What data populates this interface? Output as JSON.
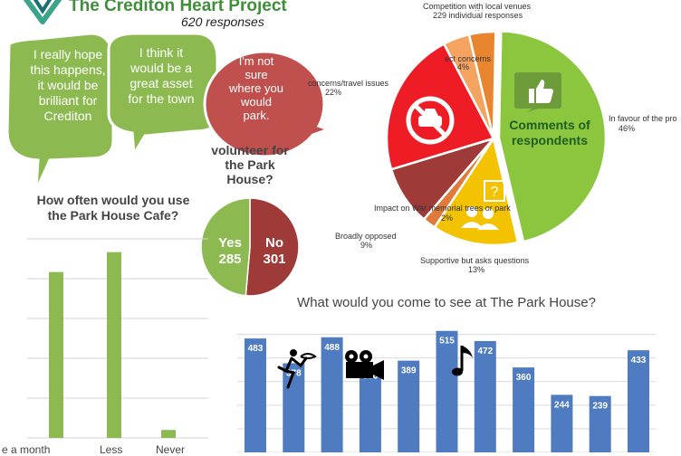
{
  "header": {
    "title": "The Crediton Heart Project",
    "subtitle": "620 responses"
  },
  "bubbles": [
    {
      "text": "I really hope this happens, it would be brilliant for Crediton",
      "color": "#8cba51"
    },
    {
      "text": "I think it would be a great asset for the town",
      "color": "#8cba51"
    },
    {
      "text": "I'm not sure where you would park.",
      "color": "#c0504d"
    }
  ],
  "volunteer": {
    "title": "volunteer for the Park House?",
    "yes_label": "Yes",
    "yes_value": "285",
    "no_label": "No",
    "no_value": "301",
    "yes_color": "#8cba51",
    "no_color": "#9e3b38"
  },
  "cafe": {
    "title": "How often would you use the Park House Cafe?",
    "bar_color": "#8cba51",
    "labels": [
      "e a month",
      "Less",
      "Never"
    ]
  },
  "comments": {
    "center_label": "Comments of respondents",
    "labels": {
      "competition": "Competition with local venues",
      "competition_pct": "4%",
      "responses": "229 individual responses",
      "noise": "ect concerns",
      "noise_pct": "4%",
      "parking": "concerns/travel issues",
      "parking_pct": "22%",
      "favour": "In favour of the pro",
      "favour_pct": "46%",
      "impact": "Impact on War memorial trees or park",
      "impact_pct": "2%",
      "opposed": "Broadly opposed",
      "opposed_pct": "9%",
      "supportive": "Supportive but asks questions",
      "supportive_pct": "13%"
    }
  },
  "chart_data": [
    {
      "type": "pie",
      "title": "volunteer for the Park House?",
      "slices": [
        {
          "label": "Yes",
          "value": 285
        },
        {
          "label": "No",
          "value": 301
        }
      ]
    },
    {
      "type": "pie",
      "title": "",
      "slices": [
        {
          "label": "In favour of the pro",
          "value": 46,
          "color": "#8cc63f"
        },
        {
          "label": "Supportive but asks questions",
          "value": 13,
          "color": "#f3c200"
        },
        {
          "label": "Impact on War memorial trees or park",
          "value": 2,
          "color": "#e07a3a"
        },
        {
          "label": "Broadly opposed",
          "value": 9,
          "color": "#9e3b38"
        },
        {
          "label": "concerns/travel issues",
          "value": 22,
          "color": "#ee1c25"
        },
        {
          "label": "ect concerns",
          "value": 4,
          "color": "#f4a460"
        },
        {
          "label": "Competition with local venues",
          "value": 4,
          "color": "#e8852e"
        }
      ]
    },
    {
      "type": "bar",
      "title": "What would you come to see at The Park House?",
      "categories": [
        "",
        "",
        "",
        "",
        "",
        "",
        "",
        "",
        "",
        "",
        ""
      ],
      "values": [
        483,
        378,
        488,
        366,
        389,
        515,
        472,
        360,
        244,
        239,
        433
      ],
      "ylim": [
        0,
        560
      ],
      "bar_color": "#4f7cc0",
      "grid": true
    },
    {
      "type": "bar",
      "title": "How often would you use the Park House Cafe?",
      "categories": [
        "e a month",
        "Less",
        "Never"
      ],
      "values": [
        250,
        280,
        12
      ],
      "ylim": [
        0,
        300
      ],
      "grid": true
    }
  ]
}
